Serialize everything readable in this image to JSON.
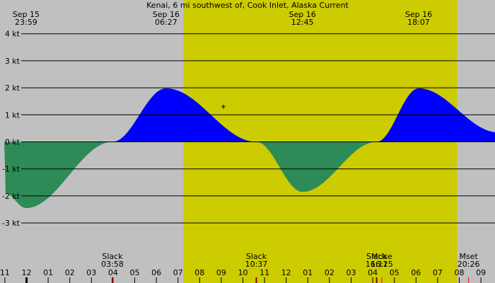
{
  "chart_data": {
    "type": "area",
    "title": "Kenai, 6 mi southwest of, Cook Inlet, Alaska Current",
    "y_unit": "kt",
    "ylim": [
      -3.65,
      4.1
    ],
    "x_range_hours": [
      -13.0,
      9.8
    ],
    "yticks": [
      {
        "value": 4,
        "label": "4 kt"
      },
      {
        "value": 3,
        "label": "3 kt"
      },
      {
        "value": 2,
        "label": "2 kt"
      },
      {
        "value": 1,
        "label": "1 kt"
      },
      {
        "value": 0,
        "label": "0 kt"
      },
      {
        "value": -1,
        "label": "-1 kt"
      },
      {
        "value": -2,
        "label": "-2 kt"
      },
      {
        "value": -3,
        "label": "-3 kt"
      }
    ],
    "hour_ticks": [
      {
        "h": -13,
        "label": "11"
      },
      {
        "h": -12,
        "label": "12"
      },
      {
        "h": -11,
        "label": "01"
      },
      {
        "h": -10,
        "label": "02"
      },
      {
        "h": -9,
        "label": "03"
      },
      {
        "h": -8,
        "label": "04"
      },
      {
        "h": -7,
        "label": "05"
      },
      {
        "h": -6,
        "label": "06"
      },
      {
        "h": -5,
        "label": "07"
      },
      {
        "h": -4,
        "label": "08"
      },
      {
        "h": -3,
        "label": "09"
      },
      {
        "h": -2,
        "label": "10"
      },
      {
        "h": -1,
        "label": "11"
      },
      {
        "h": 0,
        "label": "12"
      },
      {
        "h": 1,
        "label": "01"
      },
      {
        "h": 2,
        "label": "02"
      },
      {
        "h": 3,
        "label": "03"
      },
      {
        "h": 4,
        "label": "04"
      },
      {
        "h": 5,
        "label": "05"
      },
      {
        "h": 6,
        "label": "06"
      },
      {
        "h": 7,
        "label": "07"
      },
      {
        "h": 8,
        "label": "08"
      },
      {
        "h": 9,
        "label": "09"
      }
    ],
    "daylight": {
      "start_h": -4.75,
      "end_h": 7.9
    },
    "events": [
      {
        "date": "Sep 15",
        "time": "23:59",
        "h": -12.02,
        "value": -2.45,
        "kind": "max-ebb"
      },
      {
        "date": "Sep 16",
        "time": "06:27",
        "h": -5.55,
        "value": 1.98,
        "kind": "max-flood"
      },
      {
        "date": "Sep 16",
        "time": "12:45",
        "h": 0.75,
        "value": -1.85,
        "kind": "max-ebb"
      },
      {
        "date": "Sep 16",
        "time": "18:07",
        "h": 6.12,
        "value": 1.98,
        "kind": "max-flood"
      }
    ],
    "slack": [
      {
        "label": "Slack",
        "time": "03:58",
        "h": -8.03
      },
      {
        "label": "Slack",
        "time": "10:37",
        "h": -1.38
      },
      {
        "label": "Slack",
        "time": "16:11",
        "h": 4.18
      }
    ],
    "moon": [
      {
        "label": "Mrise",
        "time": "16:25",
        "h": 4.42
      },
      {
        "label": "Mset",
        "time": "20:26",
        "h": 8.43
      }
    ],
    "curve": [
      {
        "h": -13.0,
        "v": -1.9
      },
      {
        "h": -12.02,
        "v": -2.45
      },
      {
        "h": -8.03,
        "v": 0
      },
      {
        "h": -5.55,
        "v": 1.98
      },
      {
        "h": -1.38,
        "v": 0
      },
      {
        "h": 0.75,
        "v": -1.85
      },
      {
        "h": 4.18,
        "v": 0
      },
      {
        "h": 6.12,
        "v": 1.98
      },
      {
        "h": 9.8,
        "v": 0.35
      }
    ],
    "marker": {
      "h": -2.9,
      "v": 1.3
    },
    "colors": {
      "night": "#c0c0c0",
      "day": "#cccc00",
      "flood": "#0000ff",
      "ebb": "#2e8b57",
      "slack_tick": "#8b0000",
      "moon_tick": "#ff0000"
    }
  }
}
